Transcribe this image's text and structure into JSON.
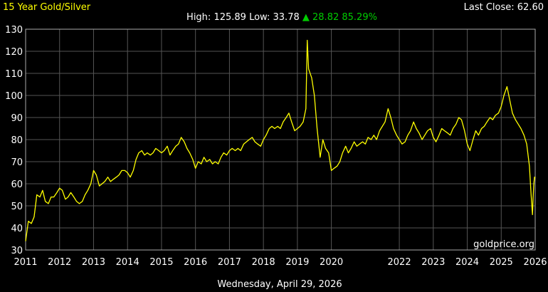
{
  "chart_data": {
    "type": "line",
    "title": "15 Year Gold/Silver",
    "stats": {
      "high_label": "High:",
      "high": "125.89",
      "low_label": "Low:",
      "low": "33.78",
      "change_arrow": "▲",
      "change": "28.82",
      "change_pct": "85.29%"
    },
    "last_close": "Last Close: 62.60",
    "watermark": "goldprice.org",
    "footer_date": "Wednesday, April 29, 2026",
    "ylim": [
      30,
      130
    ],
    "yticks": [
      30,
      40,
      50,
      60,
      70,
      80,
      90,
      100,
      110,
      120,
      130
    ],
    "xlim": [
      2011,
      2026
    ],
    "xticks": [
      2011,
      2012,
      2013,
      2014,
      2015,
      2016,
      2017,
      2018,
      2019,
      2020,
      2022,
      2023,
      2024,
      2025,
      2026
    ],
    "grid": true,
    "colors": {
      "background": "#000000",
      "plot_background": "#000000",
      "grid": "#555555",
      "axis_frame": "#aaaaaa",
      "line": "#ffff00",
      "title": "#ffff00",
      "text": "#ffffff",
      "up": "#00cc00"
    },
    "series": [
      {
        "points": [
          [
            2011.0,
            34
          ],
          [
            2011.08,
            43
          ],
          [
            2011.17,
            42
          ],
          [
            2011.25,
            45
          ],
          [
            2011.33,
            55
          ],
          [
            2011.42,
            54
          ],
          [
            2011.5,
            57
          ],
          [
            2011.58,
            52
          ],
          [
            2011.67,
            51
          ],
          [
            2011.75,
            54
          ],
          [
            2011.83,
            54
          ],
          [
            2011.92,
            56
          ],
          [
            2012.0,
            58
          ],
          [
            2012.08,
            57
          ],
          [
            2012.17,
            53
          ],
          [
            2012.25,
            54
          ],
          [
            2012.33,
            56
          ],
          [
            2012.42,
            54
          ],
          [
            2012.5,
            52
          ],
          [
            2012.58,
            51
          ],
          [
            2012.67,
            52
          ],
          [
            2012.75,
            55
          ],
          [
            2012.83,
            57
          ],
          [
            2012.92,
            60
          ],
          [
            2013.0,
            66
          ],
          [
            2013.08,
            64
          ],
          [
            2013.17,
            59
          ],
          [
            2013.25,
            60
          ],
          [
            2013.33,
            61
          ],
          [
            2013.42,
            63
          ],
          [
            2013.5,
            61
          ],
          [
            2013.58,
            62
          ],
          [
            2013.67,
            63
          ],
          [
            2013.75,
            64
          ],
          [
            2013.83,
            66
          ],
          [
            2013.92,
            66
          ],
          [
            2014.0,
            65
          ],
          [
            2014.08,
            63
          ],
          [
            2014.17,
            66
          ],
          [
            2014.25,
            71
          ],
          [
            2014.33,
            74
          ],
          [
            2014.42,
            75
          ],
          [
            2014.5,
            73
          ],
          [
            2014.58,
            74
          ],
          [
            2014.67,
            73
          ],
          [
            2014.75,
            74
          ],
          [
            2014.83,
            76
          ],
          [
            2014.92,
            75
          ],
          [
            2015.0,
            74
          ],
          [
            2015.08,
            75
          ],
          [
            2015.17,
            77
          ],
          [
            2015.25,
            73
          ],
          [
            2015.33,
            75
          ],
          [
            2015.42,
            77
          ],
          [
            2015.5,
            78
          ],
          [
            2015.58,
            81
          ],
          [
            2015.67,
            79
          ],
          [
            2015.75,
            76
          ],
          [
            2015.83,
            74
          ],
          [
            2015.92,
            71
          ],
          [
            2016.0,
            67
          ],
          [
            2016.08,
            70
          ],
          [
            2016.17,
            69
          ],
          [
            2016.25,
            72
          ],
          [
            2016.33,
            70
          ],
          [
            2016.42,
            71
          ],
          [
            2016.5,
            69
          ],
          [
            2016.58,
            70
          ],
          [
            2016.67,
            69
          ],
          [
            2016.75,
            72
          ],
          [
            2016.83,
            74
          ],
          [
            2016.92,
            73
          ],
          [
            2017.0,
            75
          ],
          [
            2017.08,
            76
          ],
          [
            2017.17,
            75
          ],
          [
            2017.25,
            76
          ],
          [
            2017.33,
            75
          ],
          [
            2017.42,
            78
          ],
          [
            2017.5,
            79
          ],
          [
            2017.58,
            80
          ],
          [
            2017.67,
            81
          ],
          [
            2017.75,
            79
          ],
          [
            2017.83,
            78
          ],
          [
            2017.92,
            77
          ],
          [
            2018.0,
            80
          ],
          [
            2018.08,
            82
          ],
          [
            2018.17,
            85
          ],
          [
            2018.25,
            86
          ],
          [
            2018.33,
            85
          ],
          [
            2018.42,
            86
          ],
          [
            2018.5,
            85
          ],
          [
            2018.58,
            88
          ],
          [
            2018.67,
            90
          ],
          [
            2018.75,
            92
          ],
          [
            2018.83,
            88
          ],
          [
            2018.92,
            84
          ],
          [
            2019.0,
            85
          ],
          [
            2019.08,
            86
          ],
          [
            2019.17,
            88
          ],
          [
            2019.25,
            94
          ],
          [
            2019.29,
            125
          ],
          [
            2019.33,
            112
          ],
          [
            2019.42,
            108
          ],
          [
            2019.5,
            100
          ],
          [
            2019.58,
            85
          ],
          [
            2019.67,
            72
          ],
          [
            2019.75,
            80
          ],
          [
            2019.83,
            76
          ],
          [
            2019.92,
            74
          ],
          [
            2020.0,
            66
          ],
          [
            2020.08,
            67
          ],
          [
            2020.17,
            68
          ],
          [
            2020.25,
            70
          ],
          [
            2020.33,
            74
          ],
          [
            2020.42,
            77
          ],
          [
            2020.5,
            74
          ],
          [
            2020.58,
            76
          ],
          [
            2020.67,
            79
          ],
          [
            2020.75,
            77
          ],
          [
            2020.83,
            78
          ],
          [
            2020.92,
            79
          ],
          [
            2021.0,
            78
          ],
          [
            2021.08,
            81
          ],
          [
            2021.17,
            80
          ],
          [
            2021.25,
            82
          ],
          [
            2021.33,
            80
          ],
          [
            2021.42,
            84
          ],
          [
            2021.5,
            86
          ],
          [
            2021.58,
            88
          ],
          [
            2021.67,
            94
          ],
          [
            2021.75,
            90
          ],
          [
            2021.83,
            85
          ],
          [
            2021.92,
            82
          ],
          [
            2022.0,
            80
          ],
          [
            2022.08,
            78
          ],
          [
            2022.17,
            79
          ],
          [
            2022.25,
            82
          ],
          [
            2022.33,
            84
          ],
          [
            2022.42,
            88
          ],
          [
            2022.5,
            85
          ],
          [
            2022.58,
            83
          ],
          [
            2022.67,
            80
          ],
          [
            2022.75,
            82
          ],
          [
            2022.83,
            84
          ],
          [
            2022.92,
            85
          ],
          [
            2023.0,
            81
          ],
          [
            2023.08,
            79
          ],
          [
            2023.17,
            82
          ],
          [
            2023.25,
            85
          ],
          [
            2023.33,
            84
          ],
          [
            2023.42,
            83
          ],
          [
            2023.5,
            82
          ],
          [
            2023.58,
            85
          ],
          [
            2023.67,
            87
          ],
          [
            2023.75,
            90
          ],
          [
            2023.83,
            89
          ],
          [
            2023.92,
            84
          ],
          [
            2024.0,
            78
          ],
          [
            2024.08,
            75
          ],
          [
            2024.17,
            80
          ],
          [
            2024.25,
            84
          ],
          [
            2024.33,
            82
          ],
          [
            2024.42,
            85
          ],
          [
            2024.5,
            86
          ],
          [
            2024.58,
            88
          ],
          [
            2024.67,
            90
          ],
          [
            2024.75,
            89
          ],
          [
            2024.83,
            91
          ],
          [
            2024.92,
            92
          ],
          [
            2025.0,
            95
          ],
          [
            2025.08,
            100
          ],
          [
            2025.17,
            104
          ],
          [
            2025.25,
            98
          ],
          [
            2025.33,
            92
          ],
          [
            2025.42,
            89
          ],
          [
            2025.5,
            87
          ],
          [
            2025.58,
            85
          ],
          [
            2025.67,
            82
          ],
          [
            2025.75,
            78
          ],
          [
            2025.83,
            68
          ],
          [
            2025.88,
            55
          ],
          [
            2025.92,
            46
          ],
          [
            2025.94,
            54
          ],
          [
            2025.96,
            60
          ],
          [
            2025.98,
            63
          ],
          [
            2026.0,
            62.6
          ]
        ]
      }
    ]
  }
}
